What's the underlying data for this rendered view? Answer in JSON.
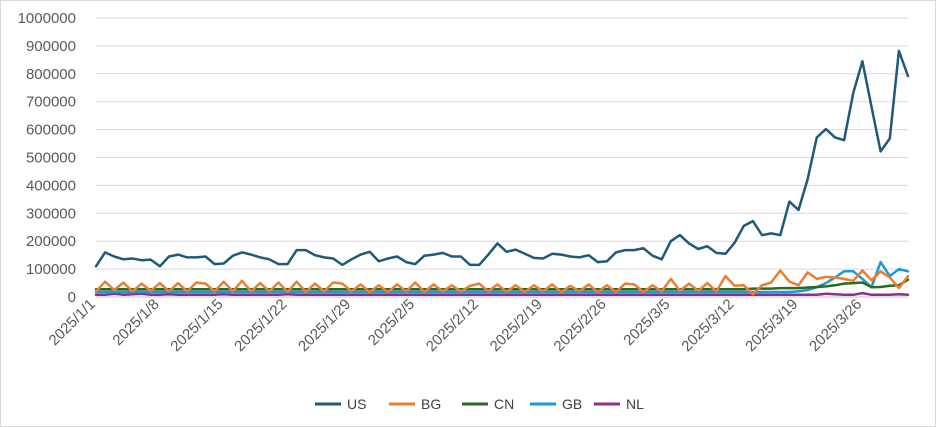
{
  "chart_data": {
    "type": "line",
    "title": "",
    "xlabel": "",
    "ylabel": "",
    "ylim": [
      0,
      1000000
    ],
    "y_ticks": [
      0,
      100000,
      200000,
      300000,
      400000,
      500000,
      600000,
      700000,
      800000,
      900000,
      1000000
    ],
    "y_tick_labels": [
      "0",
      "100000",
      "200000",
      "300000",
      "400000",
      "500000",
      "600000",
      "700000",
      "800000",
      "900000",
      "1000000"
    ],
    "x_tick_labels": [
      "2025/1/1",
      "2025/1/8",
      "2025/1/15",
      "2025/1/22",
      "2025/1/29",
      "2025/2/5",
      "2025/2/12",
      "2025/2/19",
      "2025/2/26",
      "2025/3/5",
      "2025/3/12",
      "2025/3/19",
      "2025/3/26"
    ],
    "x_start": "2025/1/1",
    "x_end": "2025/3/31",
    "grid": true,
    "legend_position": "bottom",
    "series": [
      {
        "name": "US",
        "color": "#1f5a7a",
        "values": [
          110000,
          160000,
          145000,
          135000,
          138000,
          132000,
          134000,
          110000,
          145000,
          152000,
          142000,
          142000,
          145000,
          118000,
          120000,
          148000,
          160000,
          152000,
          142000,
          135000,
          118000,
          118000,
          168000,
          168000,
          150000,
          142000,
          138000,
          115000,
          135000,
          152000,
          162000,
          128000,
          138000,
          145000,
          125000,
          118000,
          148000,
          152000,
          158000,
          145000,
          145000,
          115000,
          115000,
          152000,
          192000,
          162000,
          170000,
          155000,
          140000,
          138000,
          155000,
          152000,
          145000,
          142000,
          150000,
          125000,
          128000,
          160000,
          168000,
          168000,
          175000,
          148000,
          135000,
          200000,
          222000,
          192000,
          172000,
          182000,
          158000,
          155000,
          195000,
          255000,
          272000,
          222000,
          228000,
          222000,
          342000,
          312000,
          422000,
          572000,
          602000,
          572000,
          562000,
          732000,
          845000,
          682000,
          522000,
          568000,
          882000,
          792000
        ]
      },
      {
        "name": "BG",
        "color": "#ed7d31",
        "values": [
          20000,
          55000,
          25000,
          52000,
          20000,
          48000,
          22000,
          50000,
          20000,
          50000,
          20000,
          52000,
          48000,
          20000,
          55000,
          20000,
          58000,
          20000,
          50000,
          20000,
          52000,
          18000,
          55000,
          18000,
          48000,
          20000,
          52000,
          48000,
          20000,
          45000,
          18000,
          42000,
          18000,
          45000,
          20000,
          52000,
          18000,
          45000,
          20000,
          42000,
          20000,
          40000,
          48000,
          20000,
          45000,
          18000,
          42000,
          18000,
          42000,
          20000,
          45000,
          18000,
          40000,
          20000,
          45000,
          18000,
          42000,
          18000,
          48000,
          45000,
          18000,
          42000,
          20000,
          65000,
          22000,
          48000,
          22000,
          50000,
          20000,
          75000,
          40000,
          42000,
          10000,
          42000,
          52000,
          95000,
          55000,
          42000,
          88000,
          65000,
          72000,
          70000,
          65000,
          58000,
          95000,
          60000,
          92000,
          70000,
          32000,
          75000
        ]
      },
      {
        "name": "CN",
        "color": "#2a6b1f",
        "values": [
          28000,
          28000,
          28000,
          28000,
          28000,
          28000,
          28000,
          28000,
          28000,
          28000,
          28000,
          28000,
          28000,
          28000,
          28000,
          28000,
          28000,
          28000,
          28000,
          28000,
          28000,
          28000,
          28000,
          28000,
          28000,
          28000,
          28000,
          28000,
          28000,
          28000,
          28000,
          28000,
          28000,
          28000,
          28000,
          28000,
          28000,
          28000,
          28000,
          28000,
          28000,
          28000,
          28000,
          28000,
          28000,
          28000,
          28000,
          28000,
          28000,
          28000,
          28000,
          28000,
          28000,
          28000,
          28000,
          28000,
          28000,
          28000,
          28000,
          28000,
          28000,
          28000,
          28000,
          28000,
          28000,
          28000,
          28000,
          28000,
          28000,
          28000,
          28000,
          28000,
          30000,
          30000,
          30000,
          32000,
          32000,
          32000,
          34000,
          36000,
          38000,
          42000,
          48000,
          50000,
          52000,
          35000,
          36000,
          40000,
          42000,
          62000
        ]
      },
      {
        "name": "GB",
        "color": "#1b9ad6",
        "values": [
          18000,
          18000,
          18000,
          18000,
          18000,
          18000,
          18000,
          18000,
          18000,
          18000,
          18000,
          18000,
          18000,
          18000,
          18000,
          18000,
          18000,
          18000,
          18000,
          18000,
          18000,
          18000,
          18000,
          18000,
          18000,
          18000,
          18000,
          18000,
          18000,
          18000,
          18000,
          18000,
          18000,
          18000,
          18000,
          18000,
          18000,
          18000,
          18000,
          18000,
          18000,
          18000,
          18000,
          18000,
          18000,
          18000,
          18000,
          18000,
          18000,
          18000,
          18000,
          18000,
          18000,
          18000,
          18000,
          18000,
          18000,
          18000,
          18000,
          18000,
          18000,
          18000,
          18000,
          18000,
          18000,
          18000,
          18000,
          18000,
          18000,
          18000,
          18000,
          18000,
          18000,
          18000,
          18000,
          18000,
          18000,
          20000,
          25000,
          35000,
          50000,
          70000,
          92000,
          92000,
          65000,
          35000,
          125000,
          75000,
          100000,
          92000
        ]
      },
      {
        "name": "NL",
        "color": "#8e2f8f",
        "values": [
          8000,
          8000,
          12000,
          8000,
          10000,
          12000,
          8000,
          8000,
          10000,
          8000,
          8000,
          8000,
          8000,
          8000,
          10000,
          8000,
          8000,
          8000,
          8000,
          8000,
          8000,
          10000,
          8000,
          8000,
          8000,
          8000,
          8000,
          8000,
          8000,
          8000,
          8000,
          8000,
          8000,
          8000,
          8000,
          8000,
          8000,
          8000,
          8000,
          8000,
          8000,
          8000,
          8000,
          8000,
          8000,
          8000,
          8000,
          8000,
          8000,
          8000,
          8000,
          8000,
          8000,
          8000,
          8000,
          8000,
          8000,
          8000,
          8000,
          8000,
          8000,
          8000,
          8000,
          8000,
          8000,
          8000,
          8000,
          8000,
          8000,
          8000,
          8000,
          8000,
          8000,
          8000,
          8000,
          8000,
          8000,
          8000,
          8000,
          8000,
          12000,
          10000,
          8000,
          8000,
          14000,
          8000,
          8000,
          8000,
          10000,
          8000
        ]
      }
    ]
  }
}
